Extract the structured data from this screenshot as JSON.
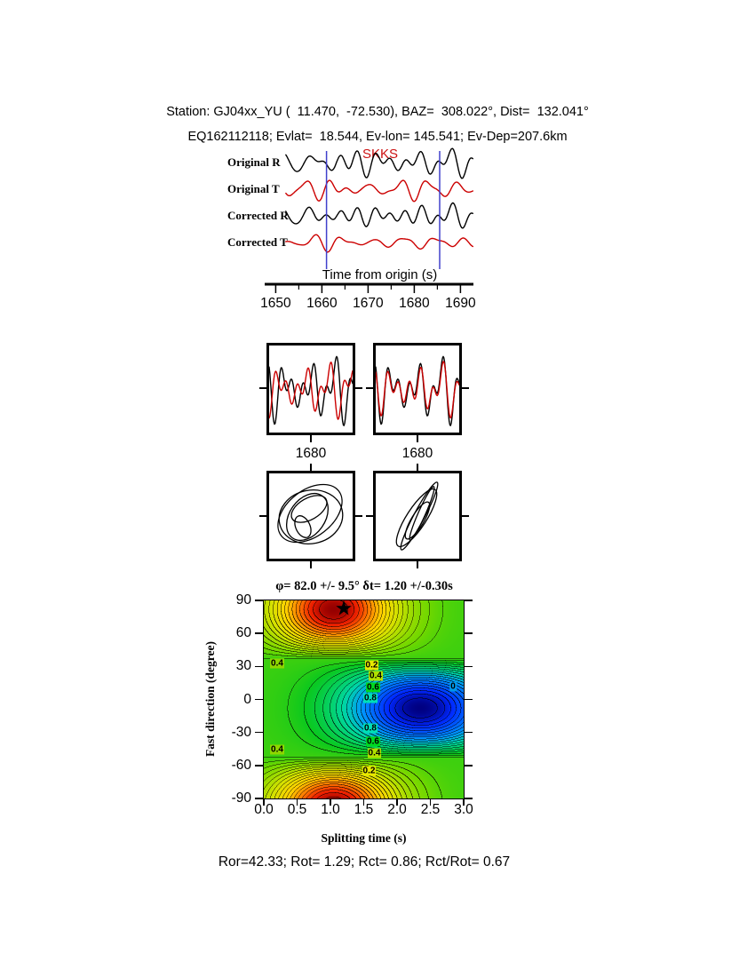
{
  "header": {
    "line1": "Station: GJ04xx_YU (  11.470,  -72.530), BAZ=  308.022°, Dist=  132.041°",
    "line2": "EQ162112118; Evlat=  18.544, Ev-lon= 145.541; Ev-Dep=207.6km"
  },
  "waveforms": {
    "phase_label": "SKKS",
    "phase_color": "#cc1111",
    "trace_labels": [
      "Original R",
      "Original T",
      "Corrected R",
      "Corrected T"
    ],
    "trace_colors": [
      "#000000",
      "#cc0000",
      "#000000",
      "#cc0000"
    ],
    "xlabel": "Time from origin (s)",
    "xticks": [
      1650,
      1660,
      1670,
      1680,
      1690
    ],
    "x_range": [
      1648,
      1693
    ],
    "window_s": [
      1661,
      1685.5
    ],
    "window_color": "#4040cc"
  },
  "window_zoom": {
    "panels": [
      {
        "tick_label": "1680"
      },
      {
        "tick_label": "1680"
      }
    ]
  },
  "contour": {
    "title": "φ= 82.0 +/- 9.5° δt= 1.20 +/-0.30s",
    "xlabel": "Splitting time (s)",
    "ylabel": "Fast direction (degree)",
    "xticks": [
      "0.0",
      "0.5",
      "1.0",
      "1.5",
      "2.0",
      "2.5",
      "3.0"
    ],
    "yticks": [
      "90",
      "60",
      "30",
      "0",
      "-30",
      "-60",
      "-90"
    ],
    "best_fit": {
      "dt_s": 1.2,
      "phi_deg": 82,
      "marker": "★"
    },
    "labels": [
      {
        "text": "0.4",
        "dt": 0.2,
        "phi": 33,
        "bg": "#8ed600"
      },
      {
        "text": "0.2",
        "dt": 1.62,
        "phi": 31,
        "bg": "#e8e800"
      },
      {
        "text": "0.4",
        "dt": 1.68,
        "phi": 21,
        "bg": "#b0e000"
      },
      {
        "text": "0.6",
        "dt": 1.64,
        "phi": 11,
        "bg": "#00d820"
      },
      {
        "text": "0.8",
        "dt": 1.6,
        "phi": 1,
        "bg": "#00e0b8"
      },
      {
        "text": "0",
        "dt": 2.84,
        "phi": 12,
        "bg": "#0098e8"
      },
      {
        "text": "0.8",
        "dt": 1.6,
        "phi": -26,
        "bg": "#00e0b8"
      },
      {
        "text": "0.6",
        "dt": 1.64,
        "phi": -38,
        "bg": "#00d820"
      },
      {
        "text": "0.4",
        "dt": 1.66,
        "phi": -49,
        "bg": "#b0e000"
      },
      {
        "text": "0.2",
        "dt": 1.58,
        "phi": -65,
        "bg": "#e8e800"
      },
      {
        "text": "0.4",
        "dt": 0.2,
        "phi": -46,
        "bg": "#8ed600"
      }
    ]
  },
  "footer": {
    "stats": "Ror=42.33; Rot= 1.29; Rct= 0.86; Rct/Rot= 0.67"
  },
  "measurement": {
    "station": "GJ04xx_YU",
    "station_lat": 11.47,
    "station_lon": -72.53,
    "baz_deg": 308.022,
    "dist_deg": 132.041,
    "event_id": "EQ162112118",
    "ev_lat": 18.544,
    "ev_lon": 145.541,
    "ev_dep_km": 207.6,
    "phase": "SKKS",
    "phi_deg": 82.0,
    "phi_err_deg": 9.5,
    "dt_s": 1.2,
    "dt_err_s": 0.3,
    "Ror": 42.33,
    "Rot": 1.29,
    "Rct": 0.86,
    "Rct_over_Rot": 0.67
  },
  "chart_data": [
    {
      "type": "line",
      "title": "SKKS phase waveforms",
      "series": [
        {
          "name": "Original R",
          "color": "#000000"
        },
        {
          "name": "Original T",
          "color": "#cc0000"
        },
        {
          "name": "Corrected R",
          "color": "#000000"
        },
        {
          "name": "Corrected T",
          "color": "#cc0000"
        }
      ],
      "xlabel": "Time from origin (s)",
      "xlim": [
        1648,
        1693
      ],
      "xticks": [
        1650,
        1660,
        1670,
        1680,
        1690
      ],
      "analysis_window_s": [
        1661,
        1685.5
      ],
      "note": "unlabeled amplitude traces; blue vertical lines mark analysis window"
    },
    {
      "type": "line",
      "title": "windowed fast/slow waveform pairs (before and after correction)",
      "xticks": [
        1680
      ],
      "note": "two sub-panels, black and red traces; right panel aligned"
    },
    {
      "type": "scatter",
      "title": "particle motion (original elliptical, corrected linearized)",
      "note": "two sub-panels of particle-motion hodograms"
    },
    {
      "type": "heatmap",
      "title": "φ= 82.0 +/- 9.5° δt= 1.20 +/-0.30s",
      "xlabel": "Splitting time (s)",
      "ylabel": "Fast direction (degree)",
      "xlim": [
        0,
        3
      ],
      "ylim": [
        -90,
        90
      ],
      "xticks": [
        0.0,
        0.5,
        1.0,
        1.5,
        2.0,
        2.5,
        3.0
      ],
      "yticks": [
        90,
        60,
        30,
        0,
        -30,
        -60,
        -90
      ],
      "contour_levels_labeled": [
        0,
        0.2,
        0.4,
        0.6,
        0.8
      ],
      "maximum_red_region": {
        "splitting_time_s": 1.2,
        "fast_direction_deg": 82
      },
      "minimum_blue_region": {
        "splitting_time_s": 2.4,
        "fast_direction_deg": -8
      },
      "best_fit": {
        "phi_deg": 82.0,
        "phi_err_deg": 9.5,
        "dt_s": 1.2,
        "dt_err_s": 0.3
      },
      "legend_position": "none",
      "grid": false
    }
  ]
}
